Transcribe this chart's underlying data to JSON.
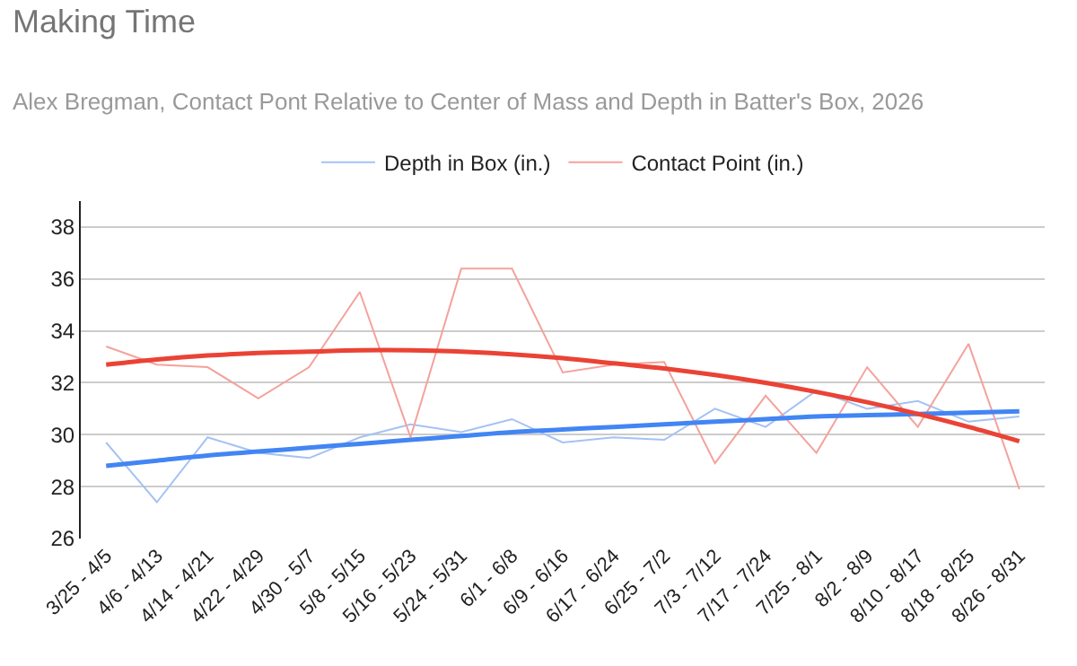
{
  "chart_data": {
    "type": "line",
    "title": "Making Time",
    "subtitle": "Alex Bregman, Contact Pont Relative to Center of Mass and Depth in Batter's Box, 2026",
    "categories": [
      "3/25 - 4/5",
      "4/6 - 4/13",
      "4/14 - 4/21",
      "4/22 - 4/29",
      "4/30 - 5/7",
      "5/8 - 5/15",
      "5/16 - 5/23",
      "5/24 - 5/31",
      "6/1 - 6/8",
      "6/9 - 6/16",
      "6/17 - 6/24",
      "6/25 - 7/2",
      "7/3 - 7/12",
      "7/17 - 7/24",
      "7/25 - 8/1",
      "8/2 - 8/9",
      "8/10 - 8/17",
      "8/18 - 8/25",
      "8/26 - 8/31"
    ],
    "series": [
      {
        "name": "Depth in Box (in.)",
        "color": "#a4c2f4",
        "values": [
          29.7,
          27.4,
          29.9,
          29.3,
          29.1,
          29.9,
          30.4,
          30.1,
          30.6,
          29.7,
          29.9,
          29.8,
          31.0,
          30.3,
          31.7,
          31.0,
          31.3,
          30.5,
          30.7
        ]
      },
      {
        "name": "Contact Point (in.)",
        "color": "#f4a29c",
        "values": [
          33.4,
          32.7,
          32.6,
          31.4,
          32.6,
          35.5,
          29.9,
          36.4,
          36.4,
          32.4,
          32.7,
          32.8,
          28.9,
          31.5,
          29.3,
          32.6,
          30.3,
          33.5,
          27.9
        ]
      },
      {
        "color": "#4285f4",
        "values": [
          28.8,
          29.0,
          29.2,
          29.35,
          29.5,
          29.65,
          29.8,
          29.95,
          30.1,
          30.2,
          30.3,
          30.4,
          30.5,
          30.6,
          30.7,
          30.75,
          30.8,
          30.85,
          30.9
        ]
      },
      {
        "color": "#ea4335",
        "values": [
          32.7,
          32.9,
          33.05,
          33.15,
          33.2,
          33.25,
          33.25,
          33.2,
          33.1,
          32.95,
          32.75,
          32.55,
          32.3,
          32.0,
          31.65,
          31.25,
          30.8,
          30.3,
          29.75
        ]
      }
    ],
    "ylim": [
      26,
      39
    ],
    "yticks": [
      26,
      28,
      30,
      32,
      34,
      36,
      38
    ],
    "grid": "y",
    "legend": "top"
  }
}
